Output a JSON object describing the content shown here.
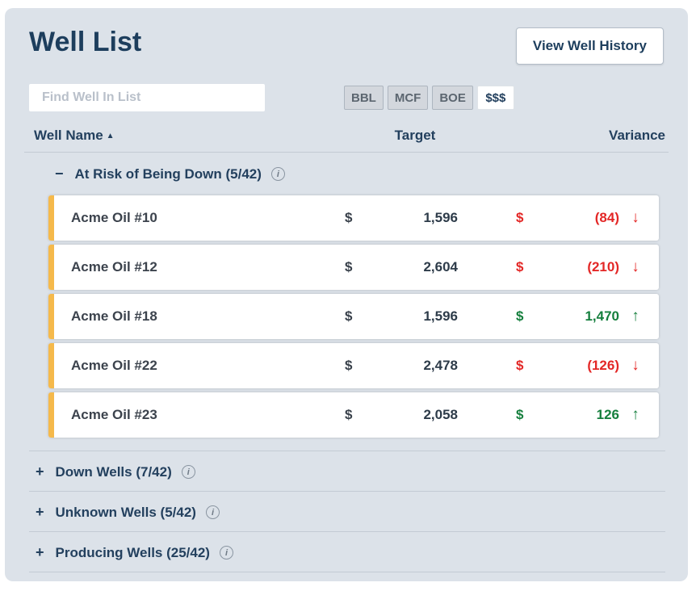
{
  "panel": {
    "title": "Well List",
    "view_history_button": "View Well History"
  },
  "search": {
    "placeholder": "Find Well In List"
  },
  "units": {
    "options": [
      "BBL",
      "MCF",
      "BOE",
      "$$$"
    ],
    "selected": "$$$"
  },
  "columns": {
    "well_name": "Well Name",
    "sort_arrow": "▲",
    "sort_column": "Well Name",
    "sort_direction": "ascending",
    "target": "Target",
    "variance": "Variance"
  },
  "icons": {
    "info": "i",
    "expanded_toggle": "−",
    "collapsed_toggle": "+"
  },
  "groups": [
    {
      "label": "At Risk of Being Down (5/42)",
      "expanded": true,
      "rows": [
        {
          "name": "Acme Oil #10",
          "target_currency": "$",
          "target": "1,596",
          "variance_currency": "$",
          "variance": "(84)",
          "arrow": "↓",
          "trend": "down"
        },
        {
          "name": "Acme Oil #12",
          "target_currency": "$",
          "target": "2,604",
          "variance_currency": "$",
          "variance": "(210)",
          "arrow": "↓",
          "trend": "down"
        },
        {
          "name": "Acme Oil #18",
          "target_currency": "$",
          "target": "1,596",
          "variance_currency": "$",
          "variance": "1,470",
          "arrow": "↑",
          "trend": "up"
        },
        {
          "name": "Acme Oil #22",
          "target_currency": "$",
          "target": "2,478",
          "variance_currency": "$",
          "variance": "(126)",
          "arrow": "↓",
          "trend": "down"
        },
        {
          "name": "Acme Oil #23",
          "target_currency": "$",
          "target": "2,058",
          "variance_currency": "$",
          "variance": "126",
          "arrow": "↑",
          "trend": "up"
        }
      ]
    },
    {
      "label": "Down Wells (7/42)",
      "expanded": false
    },
    {
      "label": "Unknown Wells (5/42)",
      "expanded": false
    },
    {
      "label": "Producing Wells (25/42)",
      "expanded": false
    }
  ],
  "colors": {
    "negative": "#e32726",
    "positive": "#157f3d",
    "row_accent": "#f5b94b",
    "title": "#1d3e5d",
    "panel_background": "#dce2e9"
  }
}
